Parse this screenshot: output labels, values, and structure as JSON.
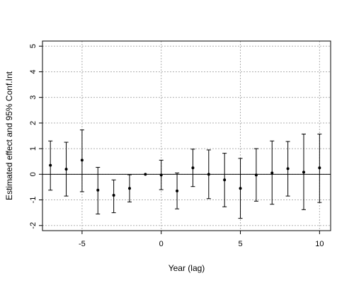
{
  "chart_data": {
    "type": "scatter",
    "title": "",
    "xlabel": "Year (lag)",
    "ylabel": "Estimated effect and 95% Conf.Int",
    "xlim": [
      -7.5,
      10.7
    ],
    "ylim": [
      -2.2,
      5.2
    ],
    "xticks": [
      -5,
      0,
      5,
      10
    ],
    "yticks": [
      -2,
      -1,
      0,
      1,
      2,
      3,
      4,
      5
    ],
    "grid": true,
    "reference_line_y": 0,
    "series": [
      {
        "points": [
          {
            "x": -7,
            "y": 0.35,
            "lo": -0.62,
            "hi": 1.3
          },
          {
            "x": -6,
            "y": 0.2,
            "lo": -0.85,
            "hi": 1.25
          },
          {
            "x": -5,
            "y": 0.55,
            "lo": -0.68,
            "hi": 1.73
          },
          {
            "x": -4,
            "y": -0.62,
            "lo": -1.55,
            "hi": 0.27
          },
          {
            "x": -3,
            "y": -0.82,
            "lo": -1.5,
            "hi": -0.22
          },
          {
            "x": -2,
            "y": -0.55,
            "lo": -1.08,
            "hi": -0.02
          },
          {
            "x": -1,
            "y": 0.0,
            "lo": 0.0,
            "hi": 0.0
          },
          {
            "x": 0,
            "y": -0.03,
            "lo": -0.6,
            "hi": 0.55
          },
          {
            "x": 1,
            "y": -0.65,
            "lo": -1.35,
            "hi": 0.05
          },
          {
            "x": 2,
            "y": 0.25,
            "lo": -0.48,
            "hi": 0.98
          },
          {
            "x": 3,
            "y": 0.0,
            "lo": -0.95,
            "hi": 0.95
          },
          {
            "x": 4,
            "y": -0.22,
            "lo": -1.27,
            "hi": 0.82
          },
          {
            "x": 5,
            "y": -0.55,
            "lo": -1.72,
            "hi": 0.62
          },
          {
            "x": 6,
            "y": -0.03,
            "lo": -1.05,
            "hi": 1.0
          },
          {
            "x": 7,
            "y": 0.05,
            "lo": -1.17,
            "hi": 1.3
          },
          {
            "x": 8,
            "y": 0.22,
            "lo": -0.85,
            "hi": 1.28
          },
          {
            "x": 9,
            "y": 0.08,
            "lo": -1.38,
            "hi": 1.57
          },
          {
            "x": 10,
            "y": 0.25,
            "lo": -1.1,
            "hi": 1.57
          }
        ]
      }
    ]
  }
}
